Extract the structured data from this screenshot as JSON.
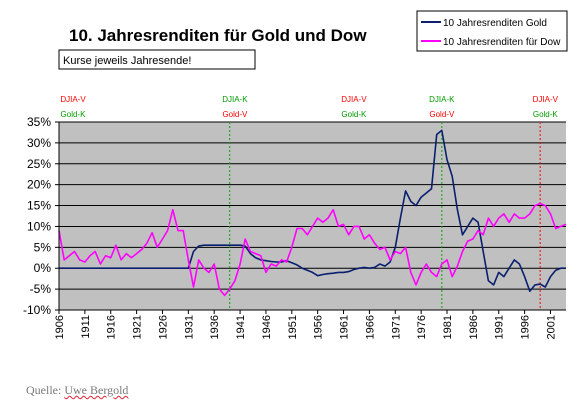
{
  "source": {
    "prefix": "Quelle: ",
    "author": "Uwe Bergold"
  },
  "chart_data": {
    "type": "line",
    "title": "10. Jahresrenditen für Gold und Dow",
    "subtitle": "Kurse jeweils Jahresende!",
    "xlabel": "",
    "ylabel": "",
    "xlim": [
      1906,
      2004
    ],
    "ylim": [
      -10,
      35
    ],
    "x_ticks": [
      1906,
      1911,
      1916,
      1921,
      1926,
      1931,
      1936,
      1941,
      1946,
      1951,
      1956,
      1961,
      1966,
      1971,
      1976,
      1981,
      1986,
      1991,
      1996,
      2001
    ],
    "y_ticks": [
      -10,
      -5,
      0,
      5,
      10,
      15,
      20,
      25,
      30,
      35
    ],
    "y_tick_labels": [
      "-10%",
      "-5%",
      "0%",
      "5%",
      "10%",
      "15%",
      "20%",
      "25%",
      "30%",
      "35%"
    ],
    "grid": "horizontal",
    "legend": "top-right",
    "series": [
      {
        "name": "10 Jahresrenditen Gold",
        "color": "#0a1f6e",
        "points": [
          [
            1906,
            0
          ],
          [
            1931,
            0
          ],
          [
            1932,
            4
          ],
          [
            1933,
            5.3
          ],
          [
            1934,
            5.5
          ],
          [
            1935,
            5.5
          ],
          [
            1936,
            5.5
          ],
          [
            1937,
            5.5
          ],
          [
            1938,
            5.5
          ],
          [
            1939,
            5.5
          ],
          [
            1940,
            5.5
          ],
          [
            1941,
            5.5
          ],
          [
            1942,
            5.3
          ],
          [
            1943,
            3.5
          ],
          [
            1944,
            2.5
          ],
          [
            1945,
            2
          ],
          [
            1946,
            1.8
          ],
          [
            1947,
            1.6
          ],
          [
            1948,
            1.5
          ],
          [
            1949,
            1.5
          ],
          [
            1950,
            1.8
          ],
          [
            1951,
            1.3
          ],
          [
            1952,
            0.8
          ],
          [
            1953,
            0
          ],
          [
            1954,
            -0.5
          ],
          [
            1955,
            -1
          ],
          [
            1956,
            -1.8
          ],
          [
            1957,
            -1.5
          ],
          [
            1958,
            -1.3
          ],
          [
            1959,
            -1.2
          ],
          [
            1960,
            -1.0
          ],
          [
            1961,
            -1.0
          ],
          [
            1962,
            -0.8
          ],
          [
            1963,
            -0.3
          ],
          [
            1964,
            0
          ],
          [
            1965,
            0.2
          ],
          [
            1966,
            0
          ],
          [
            1967,
            0.2
          ],
          [
            1968,
            1.0
          ],
          [
            1969,
            0.5
          ],
          [
            1970,
            1.5
          ],
          [
            1971,
            5
          ],
          [
            1972,
            12
          ],
          [
            1973,
            18.5
          ],
          [
            1974,
            16
          ],
          [
            1975,
            15
          ],
          [
            1976,
            17
          ],
          [
            1977,
            18
          ],
          [
            1978,
            19
          ],
          [
            1979,
            32
          ],
          [
            1980,
            33
          ],
          [
            1981,
            26
          ],
          [
            1982,
            22
          ],
          [
            1983,
            14
          ],
          [
            1984,
            8
          ],
          [
            1985,
            10
          ],
          [
            1986,
            12
          ],
          [
            1987,
            11
          ],
          [
            1988,
            4
          ],
          [
            1989,
            -3
          ],
          [
            1990,
            -4
          ],
          [
            1991,
            -1
          ],
          [
            1992,
            -2
          ],
          [
            1993,
            0
          ],
          [
            1994,
            2
          ],
          [
            1995,
            1
          ],
          [
            1996,
            -2
          ],
          [
            1997,
            -5.5
          ],
          [
            1998,
            -4
          ],
          [
            1999,
            -3.8
          ],
          [
            2000,
            -4.5
          ],
          [
            2001,
            -2
          ],
          [
            2002,
            -0.5
          ],
          [
            2003,
            0
          ],
          [
            2004,
            0
          ]
        ]
      },
      {
        "name": "10 Jahresrenditen für Dow",
        "color": "#ff00ff",
        "points": [
          [
            1906,
            9
          ],
          [
            1907,
            2
          ],
          [
            1908,
            3
          ],
          [
            1909,
            4
          ],
          [
            1910,
            2
          ],
          [
            1911,
            1.5
          ],
          [
            1912,
            3
          ],
          [
            1913,
            4
          ],
          [
            1914,
            1
          ],
          [
            1915,
            3
          ],
          [
            1916,
            2.5
          ],
          [
            1917,
            5.5
          ],
          [
            1918,
            2
          ],
          [
            1919,
            3.5
          ],
          [
            1920,
            2.5
          ],
          [
            1921,
            3.5
          ],
          [
            1922,
            4.5
          ],
          [
            1923,
            6
          ],
          [
            1924,
            8.5
          ],
          [
            1925,
            5
          ],
          [
            1926,
            7
          ],
          [
            1927,
            9
          ],
          [
            1928,
            14
          ],
          [
            1929,
            9
          ],
          [
            1930,
            9
          ],
          [
            1931,
            2
          ],
          [
            1932,
            -4.5
          ],
          [
            1933,
            2
          ],
          [
            1934,
            0
          ],
          [
            1935,
            -1
          ],
          [
            1936,
            1
          ],
          [
            1937,
            -5
          ],
          [
            1938,
            -6.5
          ],
          [
            1939,
            -5
          ],
          [
            1940,
            -3
          ],
          [
            1941,
            1
          ],
          [
            1942,
            7
          ],
          [
            1943,
            4
          ],
          [
            1944,
            3.5
          ],
          [
            1945,
            3
          ],
          [
            1946,
            -1
          ],
          [
            1947,
            1
          ],
          [
            1948,
            0.5
          ],
          [
            1949,
            2
          ],
          [
            1950,
            1.5
          ],
          [
            1951,
            5
          ],
          [
            1952,
            9.5
          ],
          [
            1953,
            9.5
          ],
          [
            1954,
            8
          ],
          [
            1955,
            10
          ],
          [
            1956,
            12
          ],
          [
            1957,
            11
          ],
          [
            1958,
            12
          ],
          [
            1959,
            14
          ],
          [
            1960,
            10
          ],
          [
            1961,
            10.5
          ],
          [
            1962,
            8
          ],
          [
            1963,
            10
          ],
          [
            1964,
            10
          ],
          [
            1965,
            7
          ],
          [
            1966,
            8
          ],
          [
            1967,
            6
          ],
          [
            1968,
            4.5
          ],
          [
            1969,
            5
          ],
          [
            1970,
            2
          ],
          [
            1971,
            4
          ],
          [
            1972,
            3.5
          ],
          [
            1973,
            5
          ],
          [
            1974,
            -1
          ],
          [
            1975,
            -4
          ],
          [
            1976,
            -1
          ],
          [
            1977,
            1
          ],
          [
            1978,
            -1
          ],
          [
            1979,
            -2
          ],
          [
            1980,
            1
          ],
          [
            1981,
            2
          ],
          [
            1982,
            -2
          ],
          [
            1983,
            0.5
          ],
          [
            1984,
            4
          ],
          [
            1985,
            6.5
          ],
          [
            1986,
            7
          ],
          [
            1987,
            9
          ],
          [
            1988,
            8
          ],
          [
            1989,
            12
          ],
          [
            1990,
            10
          ],
          [
            1991,
            12
          ],
          [
            1992,
            13
          ],
          [
            1993,
            11
          ],
          [
            1994,
            13
          ],
          [
            1995,
            12
          ],
          [
            1996,
            12
          ],
          [
            1997,
            13
          ],
          [
            1998,
            15
          ],
          [
            1999,
            15.5
          ],
          [
            2000,
            15
          ],
          [
            2001,
            13
          ],
          [
            2002,
            9.5
          ],
          [
            2003,
            10
          ],
          [
            2004,
            10.5
          ]
        ]
      }
    ],
    "reference_lines": [
      {
        "x": 1939,
        "color": "#00aa00"
      },
      {
        "x": 1980,
        "color": "#00aa00"
      },
      {
        "x": 1999,
        "color": "#ff0000"
      }
    ],
    "annotations": [
      {
        "x": 1906,
        "line1": "DJIA-V",
        "color1": "#ff0000",
        "line2": "Gold-K",
        "color2": "#009900"
      },
      {
        "x": 1940,
        "line1": "DJIA-K",
        "color1": "#009900",
        "line2": "Gold-V",
        "color2": "#ff0000"
      },
      {
        "x": 1963,
        "line1": "DJIA-V",
        "color1": "#ff0000",
        "line2": "Gold-K",
        "color2": "#009900"
      },
      {
        "x": 1980,
        "line1": "DJIA-K",
        "color1": "#009900",
        "line2": "Gold-V",
        "color2": "#ff0000"
      },
      {
        "x": 2000,
        "line1": "DJIA-V",
        "color1": "#ff0000",
        "line2": "Gold-K",
        "color2": "#009900"
      }
    ]
  }
}
